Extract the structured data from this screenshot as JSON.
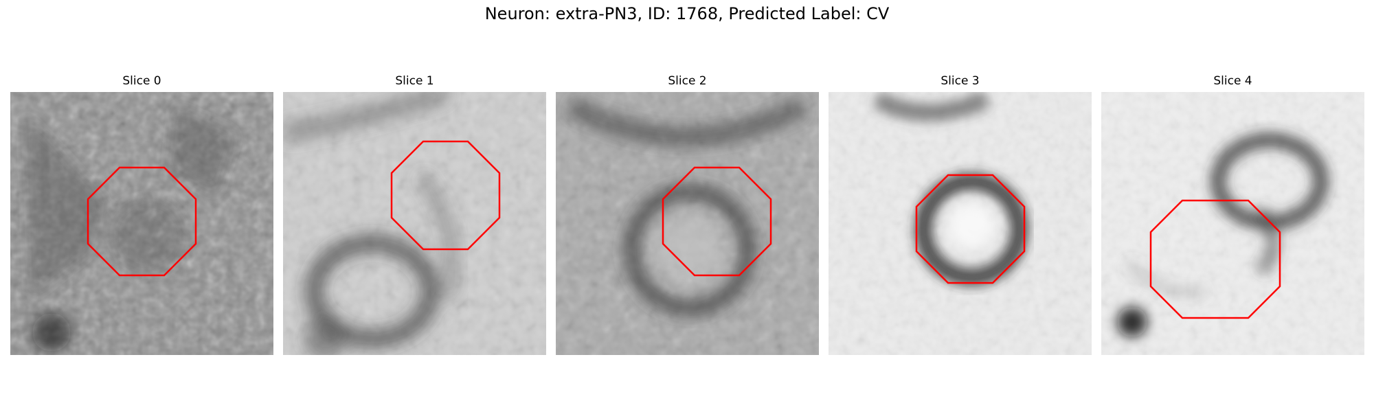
{
  "figure": {
    "title": "Neuron: extra-PN3, ID: 1768, Predicted Label: CV"
  },
  "panels": [
    {
      "title": "Slice 0"
    },
    {
      "title": "Slice 1"
    },
    {
      "title": "Slice 2"
    },
    {
      "title": "Slice 3"
    },
    {
      "title": "Slice 4"
    }
  ],
  "colors": {
    "outline": "#ff0000",
    "background": "#ffffff"
  }
}
